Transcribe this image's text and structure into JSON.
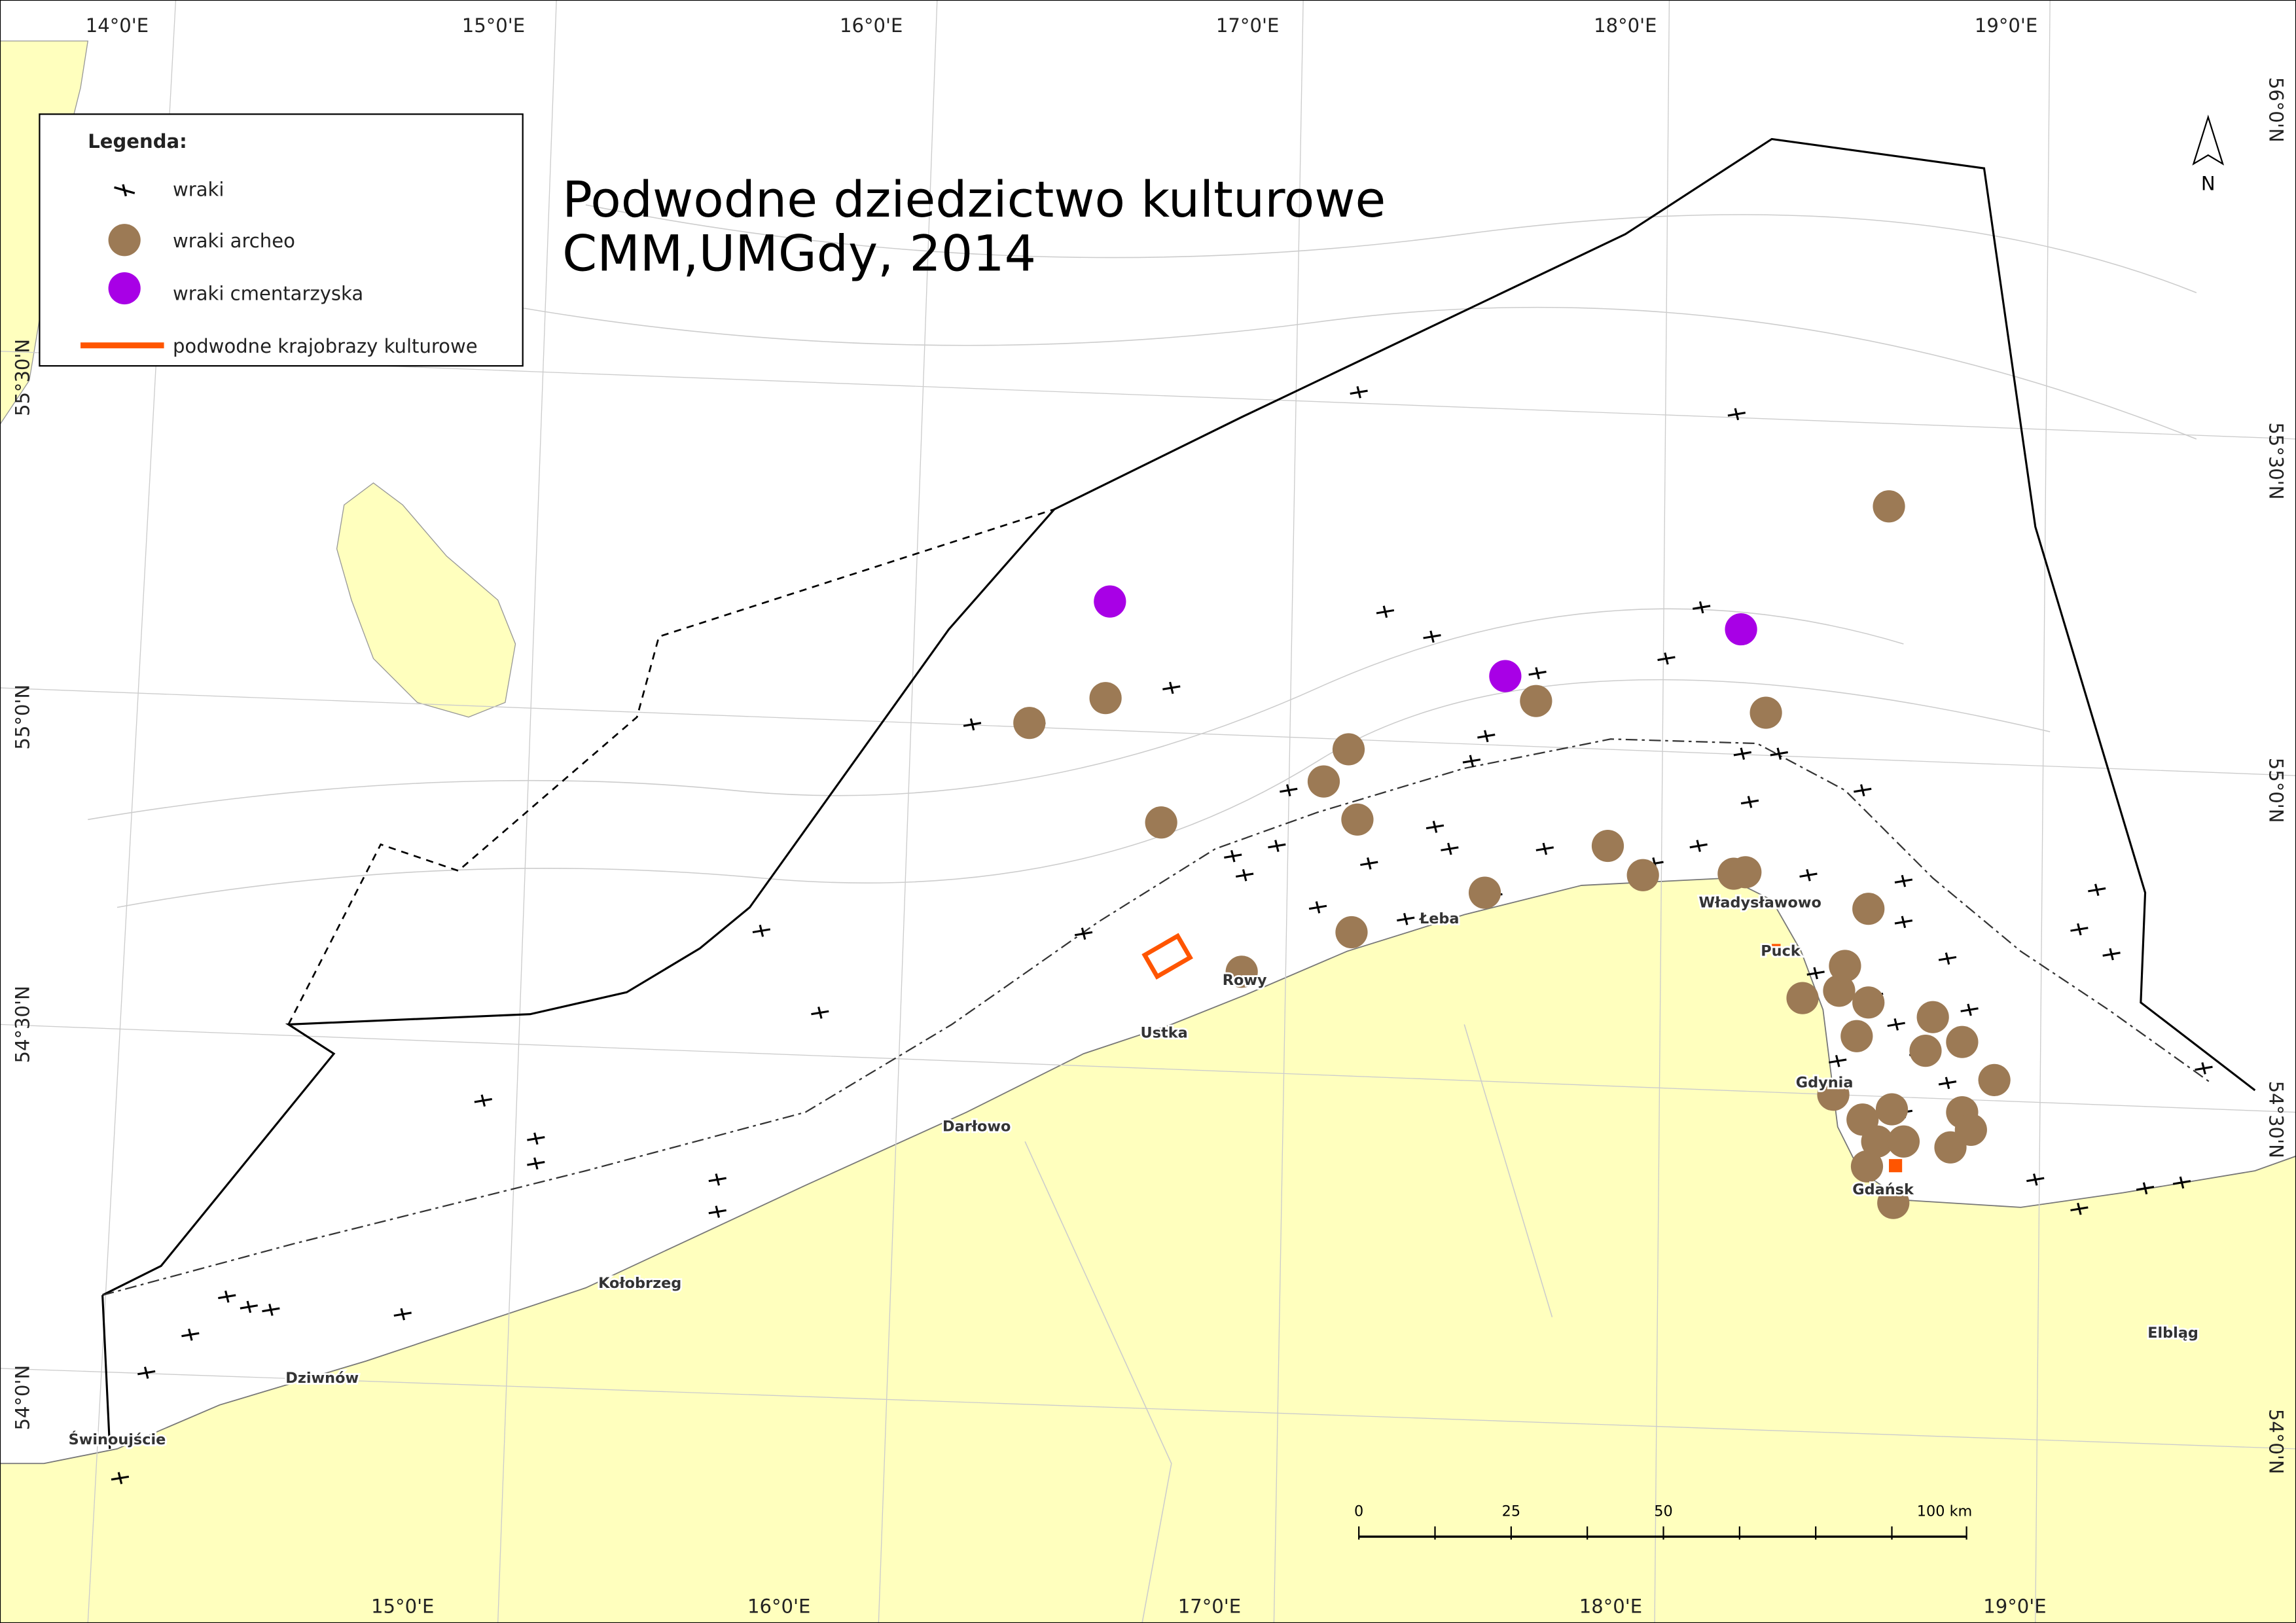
{
  "title": [
    "Podwodne dziedzictwo kulturowe",
    "CMM,UMGdy, 2014"
  ],
  "legend": {
    "heading": "Legenda:",
    "items": [
      "wraki",
      "wraki archeo",
      "wraki cmentarzyska",
      "podwodne krajobrazy kulturowe"
    ]
  },
  "graticule": {
    "top": [
      "14°0'E",
      "15°0'E",
      "16°0'E",
      "17°0'E",
      "18°0'E",
      "19°0'E"
    ],
    "bottom": [
      "15°0'E",
      "16°0'E",
      "17°0'E",
      "18°0'E",
      "19°0'E"
    ],
    "left": [
      "55°30'N",
      "55°0'N",
      "54°30'N",
      "54°0'N"
    ],
    "right": [
      "56°0'N",
      "55°30'N",
      "55°0'N",
      "54°30'N",
      "54°0'N"
    ]
  },
  "places": [
    "Władysławowo",
    "Puck",
    "Rowy",
    "Łeba",
    "Ustka",
    "Darłowo",
    "Gdynia",
    "Gdańsk",
    "Kołobrzeg",
    "Dziwnów",
    "Świnoujście",
    "Elbląg"
  ],
  "scale_bar": [
    "0",
    "25",
    "50",
    "100 km"
  ],
  "north": "N"
}
